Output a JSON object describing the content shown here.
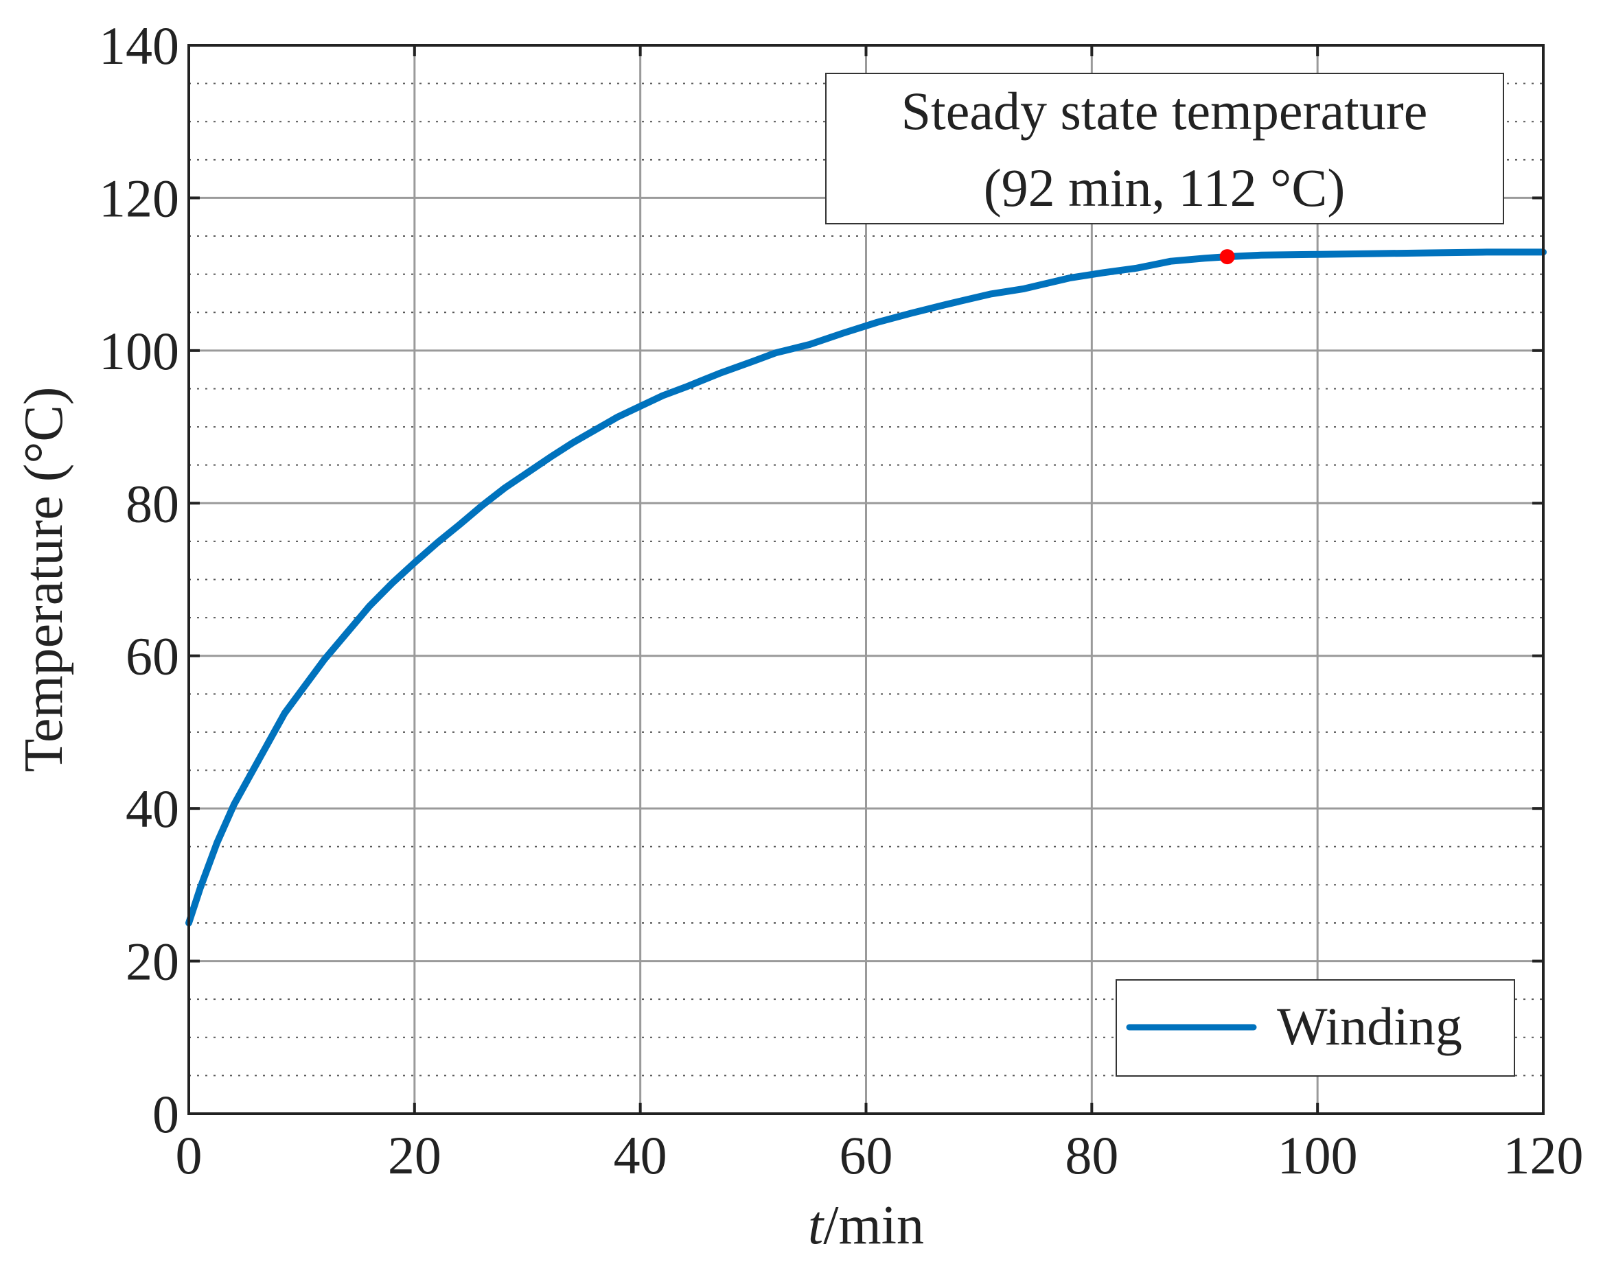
{
  "chart_data": {
    "type": "line",
    "title": "",
    "xlabel_italic": "t",
    "xlabel_rest": "/min",
    "ylabel": "Temperature (°C)",
    "xlim": [
      0,
      120
    ],
    "ylim": [
      0,
      140
    ],
    "x_ticks": [
      0,
      20,
      40,
      60,
      80,
      100,
      120
    ],
    "y_ticks": [
      0,
      20,
      40,
      60,
      80,
      100,
      120,
      140
    ],
    "x_tick_labels": [
      "0",
      "20",
      "40",
      "60",
      "80",
      "100",
      "120"
    ],
    "y_tick_labels": [
      "0",
      "20",
      "40",
      "60",
      "80",
      "100",
      "120",
      "140"
    ],
    "y_minor_step": 5,
    "grid": true,
    "series": [
      {
        "name": "Winding",
        "color": "#0072BD",
        "x": [
          0,
          1,
          2.5,
          4,
          5.5,
          7,
          8.5,
          10,
          12,
          14,
          16,
          18,
          20,
          22,
          24,
          26,
          28,
          30,
          32,
          34,
          36,
          38,
          40,
          42,
          44,
          47,
          50,
          52,
          55,
          58,
          61,
          64,
          67,
          71,
          74,
          78,
          81,
          84,
          87,
          90,
          92,
          95,
          100,
          105,
          110,
          115,
          120
        ],
        "y": [
          25,
          29.5,
          35.5,
          40.5,
          44.5,
          48.5,
          52.5,
          55.5,
          59.5,
          63,
          66.5,
          69.5,
          72.2,
          74.8,
          77.2,
          79.7,
          82,
          84,
          86,
          87.9,
          89.6,
          91.3,
          92.7,
          94.1,
          95.2,
          97,
          98.6,
          99.7,
          100.8,
          102.3,
          103.7,
          104.9,
          106,
          107.4,
          108.1,
          109.5,
          110.2,
          110.8,
          111.7,
          112.1,
          112.3,
          112.5,
          112.6,
          112.7,
          112.8,
          112.9,
          112.9
        ]
      }
    ],
    "marker": {
      "x": 92,
      "y": 112.3,
      "color": "#FF0000"
    },
    "annotation": {
      "line1": "Steady state temperature",
      "line2": "(92 min, 112 °C)"
    },
    "legend": {
      "position": "bottom-right",
      "entries": [
        "Winding"
      ]
    }
  }
}
